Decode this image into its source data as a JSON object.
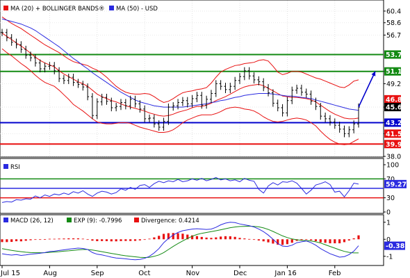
{
  "chart_data": [
    {
      "type": "line",
      "panel": "price",
      "legend": [
        "MA (20) + BOLLINGER BANDS®",
        "MA (50) - USD"
      ],
      "colors": {
        "bollinger": "#e81010",
        "ma50": "#2a2ae0",
        "support": "#0000cc",
        "resistance": "#138a13",
        "stop": "#e81010",
        "forecast": "#0000cc"
      },
      "ylim": [
        38.0,
        62.0
      ],
      "y_ticks": [
        "60.4",
        "58.6",
        "56.7",
        "51.1",
        "49.2",
        "45.6",
        "43.2",
        "41.5",
        "38.0"
      ],
      "x_ticks": [
        "Jul 15",
        "Aug",
        "Sep",
        "Oct",
        "Nov",
        "Dec",
        "Jan 16",
        "Feb"
      ],
      "levels": [
        {
          "value": 53.7,
          "label": "53.7",
          "kind": "resistance"
        },
        {
          "value": 51.1,
          "label": "51.1",
          "kind": "resistance"
        },
        {
          "value": 43.2,
          "label": "43.2",
          "kind": "support"
        },
        {
          "value": 39.9,
          "label": "39.9",
          "kind": "stop"
        }
      ],
      "tags": [
        {
          "value": 46.8,
          "label": "46.8",
          "color": "#e81010"
        },
        {
          "value": 45.6,
          "label": "45.6",
          "color": "#000000"
        },
        {
          "value": 41.5,
          "label": "41.5",
          "color": "#e81010"
        }
      ],
      "forecast_target": 51.1,
      "close": [
        57.1,
        56.3,
        55.6,
        55.2,
        54.5,
        53.6,
        53.2,
        52.4,
        51.5,
        51.9,
        52.0,
        51.2,
        50.0,
        49.7,
        50.2,
        49.4,
        49.1,
        48.7,
        47.2,
        44.3,
        46.4,
        47.1,
        46.5,
        45.5,
        45.7,
        46.3,
        45.8,
        46.8,
        46.1,
        45.3,
        43.8,
        43.9,
        43.0,
        42.5,
        43.4,
        45.6,
        45.8,
        46.3,
        46.6,
        46.1,
        46.9,
        47.4,
        45.9,
        46.8,
        47.7,
        49.2,
        48.8,
        48.3,
        48.8,
        49.7,
        50.3,
        51.2,
        50.4,
        49.8,
        49.5,
        48.6,
        47.8,
        46.2,
        45.5,
        44.7,
        46.6,
        48.2,
        48.5,
        47.9,
        47.6,
        46.5,
        45.7,
        44.2,
        43.8,
        43.3,
        42.8,
        42.2,
        41.5,
        42.1,
        43.0,
        45.6
      ],
      "bb_middle": [
        57.0,
        56.5,
        56.0,
        55.5,
        55.0,
        54.5,
        53.9,
        53.3,
        52.8,
        52.4,
        52.1,
        51.8,
        51.2,
        50.7,
        50.3,
        49.9,
        49.5,
        49.2,
        48.8,
        48.2,
        47.6,
        47.2,
        46.9,
        46.6,
        46.4,
        46.1,
        45.8,
        45.6,
        45.4,
        45.2,
        45.0,
        44.7,
        44.5,
        44.3,
        44.2,
        44.3,
        44.5,
        44.8,
        45.0,
        45.2,
        45.5,
        45.7,
        45.7,
        45.9,
        46.2,
        46.6,
        46.9,
        47.2,
        47.6,
        48.0,
        48.4,
        48.7,
        48.9,
        49.0,
        49.1,
        48.9,
        48.5,
        48.1,
        47.7,
        47.3,
        47.2,
        47.1,
        47.1,
        47.0,
        46.9,
        46.7,
        46.4,
        45.9,
        45.4,
        44.9,
        44.5,
        44.2,
        43.9,
        43.8,
        43.8,
        43.9
      ],
      "bb_upper": [
        59.5,
        59.0,
        58.5,
        58.1,
        57.7,
        57.2,
        56.7,
        56.2,
        55.7,
        55.2,
        54.8,
        54.4,
        54.0,
        53.5,
        53.0,
        52.6,
        52.4,
        52.2,
        52.0,
        51.6,
        51.3,
        50.8,
        50.2,
        49.5,
        48.8,
        48.3,
        47.9,
        47.7,
        47.6,
        47.6,
        47.7,
        47.6,
        47.2,
        46.7,
        46.3,
        46.5,
        46.9,
        47.4,
        47.8,
        48.0,
        48.1,
        48.3,
        48.4,
        48.6,
        49.3,
        50.2,
        51.0,
        51.4,
        51.7,
        52.0,
        52.1,
        52.3,
        52.4,
        52.5,
        52.8,
        52.9,
        52.7,
        51.9,
        51.0,
        50.6,
        50.8,
        51.1,
        51.1,
        51.0,
        50.7,
        50.4,
        50.1,
        49.9,
        49.6,
        49.3,
        49.0,
        48.7,
        48.6,
        49.0,
        49.6,
        49.8
      ],
      "bb_lower": [
        54.6,
        54.0,
        53.5,
        52.9,
        52.3,
        51.8,
        51.2,
        50.5,
        49.9,
        49.4,
        49.1,
        48.8,
        48.2,
        47.5,
        46.8,
        46.0,
        45.5,
        45.0,
        44.4,
        43.8,
        43.3,
        43.1,
        43.0,
        43.0,
        43.1,
        43.2,
        43.2,
        43.1,
        42.8,
        42.5,
        42.3,
        42.1,
        41.9,
        41.7,
        41.7,
        41.8,
        42.1,
        42.6,
        43.2,
        43.6,
        43.9,
        44.2,
        44.4,
        44.4,
        44.4,
        44.6,
        44.9,
        45.3,
        45.5,
        45.6,
        45.5,
        45.3,
        45.2,
        45.0,
        44.6,
        44.1,
        43.7,
        43.4,
        43.3,
        43.4,
        43.6,
        43.8,
        43.9,
        43.8,
        43.6,
        43.2,
        42.7,
        41.9,
        41.2,
        40.6,
        40.2,
        39.9,
        39.8,
        39.9,
        40.3,
        40.7
      ],
      "ma50": [
        59.2,
        59.0,
        58.8,
        58.6,
        58.4,
        58.1,
        57.8,
        57.4,
        56.9,
        56.4,
        55.9,
        55.4,
        54.9,
        54.3,
        53.7,
        53.1,
        52.6,
        52.0,
        51.5,
        50.9,
        50.4,
        49.9,
        49.4,
        48.9,
        48.4,
        47.9,
        47.5,
        47.1,
        46.7,
        46.4,
        46.2,
        46.0,
        45.8,
        45.7,
        45.6,
        45.6,
        45.6,
        45.6,
        45.6,
        45.7,
        45.8,
        45.9,
        46.0,
        46.1,
        46.3,
        46.4,
        46.6,
        46.7,
        46.9,
        47.1,
        47.2,
        47.4,
        47.5,
        47.6,
        47.7,
        47.7,
        47.7,
        47.6,
        47.5,
        47.4,
        47.3,
        47.3,
        47.2,
        47.1,
        47.0,
        46.9,
        46.7,
        46.5,
        46.3,
        46.1,
        45.9,
        45.7,
        45.5,
        45.3,
        45.2,
        45.1
      ]
    },
    {
      "type": "line",
      "panel": "rsi",
      "legend": [
        "RSI"
      ],
      "colors": {
        "line": "#2a2ae0",
        "upper": "#138a13",
        "mid": "#2a2ae0",
        "lower": "#e81010"
      },
      "ylim": [
        0,
        100
      ],
      "y_ticks": [
        "100",
        "70",
        "30",
        "0"
      ],
      "levels": [
        70,
        50,
        30
      ],
      "last_label": "59.27",
      "values": [
        20,
        22,
        21,
        26,
        25,
        28,
        27,
        34,
        30,
        36,
        33,
        38,
        36,
        40,
        37,
        43,
        40,
        45,
        38,
        33,
        40,
        44,
        42,
        38,
        41,
        49,
        46,
        52,
        48,
        56,
        58,
        52,
        60,
        65,
        62,
        66,
        64,
        69,
        64,
        66,
        70,
        67,
        71,
        66,
        69,
        73,
        68,
        70,
        66,
        68,
        64,
        71,
        67,
        65,
        48,
        40,
        55,
        62,
        57,
        64,
        63,
        66,
        61,
        50,
        38,
        46,
        57,
        60,
        64,
        58,
        42,
        44,
        32,
        45,
        61,
        59
      ]
    },
    {
      "type": "bar",
      "panel": "macd",
      "legend": [
        "MACD (26, 12)",
        "EXP (9): -0.7996",
        "Divergence: 0.4214"
      ],
      "colors": {
        "macd": "#2a2ae0",
        "signal": "#138a13",
        "divergence": "#e81010"
      },
      "ylim": [
        -1.5,
        1.4
      ],
      "y_ticks": [
        "1",
        "0",
        "-1"
      ],
      "last_label": "-0.38",
      "macd": [
        -0.85,
        -0.9,
        -0.93,
        -0.9,
        -0.95,
        -0.92,
        -0.88,
        -0.85,
        -0.82,
        -0.78,
        -0.72,
        -0.7,
        -0.66,
        -0.62,
        -0.58,
        -0.55,
        -0.52,
        -0.54,
        -0.6,
        -0.78,
        -0.88,
        -0.92,
        -0.98,
        -1.05,
        -1.1,
        -1.12,
        -1.15,
        -1.18,
        -1.2,
        -1.18,
        -1.12,
        -1.0,
        -0.8,
        -0.55,
        -0.2,
        0.05,
        0.25,
        0.4,
        0.5,
        0.55,
        0.6,
        0.62,
        0.6,
        0.58,
        0.6,
        0.7,
        0.85,
        0.95,
        1.0,
        0.98,
        0.9,
        0.85,
        0.8,
        0.72,
        0.6,
        0.45,
        0.25,
        0.0,
        -0.25,
        -0.4,
        -0.42,
        -0.35,
        -0.2,
        -0.15,
        -0.1,
        -0.2,
        -0.35,
        -0.55,
        -0.7,
        -0.85,
        -0.95,
        -1.05,
        -1.02,
        -0.9,
        -0.7,
        -0.38
      ],
      "signal": [
        -0.55,
        -0.6,
        -0.65,
        -0.69,
        -0.73,
        -0.76,
        -0.78,
        -0.79,
        -0.79,
        -0.79,
        -0.77,
        -0.75,
        -0.73,
        -0.7,
        -0.68,
        -0.65,
        -0.62,
        -0.6,
        -0.6,
        -0.63,
        -0.68,
        -0.73,
        -0.78,
        -0.83,
        -0.88,
        -0.93,
        -0.97,
        -1.0,
        -1.03,
        -1.06,
        -1.07,
        -1.06,
        -1.0,
        -0.92,
        -0.78,
        -0.6,
        -0.42,
        -0.25,
        -0.1,
        0.05,
        0.18,
        0.28,
        0.35,
        0.4,
        0.45,
        0.5,
        0.56,
        0.62,
        0.68,
        0.72,
        0.75,
        0.76,
        0.77,
        0.76,
        0.73,
        0.67,
        0.58,
        0.46,
        0.33,
        0.2,
        0.1,
        0.02,
        -0.03,
        -0.06,
        -0.08,
        -0.1,
        -0.15,
        -0.22,
        -0.32,
        -0.42,
        -0.52,
        -0.62,
        -0.71,
        -0.77,
        -0.8,
        -0.8
      ],
      "divergence": [
        -0.3,
        -0.3,
        -0.28,
        -0.21,
        -0.22,
        -0.16,
        -0.1,
        -0.06,
        -0.03,
        0.01,
        0.05,
        0.05,
        0.07,
        0.08,
        0.1,
        0.1,
        0.1,
        0.06,
        0.0,
        -0.15,
        -0.2,
        -0.19,
        -0.2,
        -0.22,
        -0.22,
        -0.19,
        -0.18,
        -0.18,
        -0.17,
        -0.12,
        -0.05,
        0.06,
        0.2,
        0.37,
        0.58,
        0.65,
        0.67,
        0.65,
        0.6,
        0.5,
        0.42,
        0.34,
        0.25,
        0.18,
        0.15,
        0.2,
        0.29,
        0.33,
        0.32,
        0.26,
        0.15,
        0.09,
        0.03,
        -0.04,
        -0.13,
        -0.22,
        -0.33,
        -0.46,
        -0.58,
        -0.6,
        -0.52,
        -0.37,
        -0.17,
        -0.09,
        -0.02,
        -0.1,
        -0.2,
        -0.33,
        -0.38,
        -0.43,
        -0.43,
        -0.43,
        -0.31,
        -0.13,
        0.1,
        0.42
      ]
    }
  ]
}
